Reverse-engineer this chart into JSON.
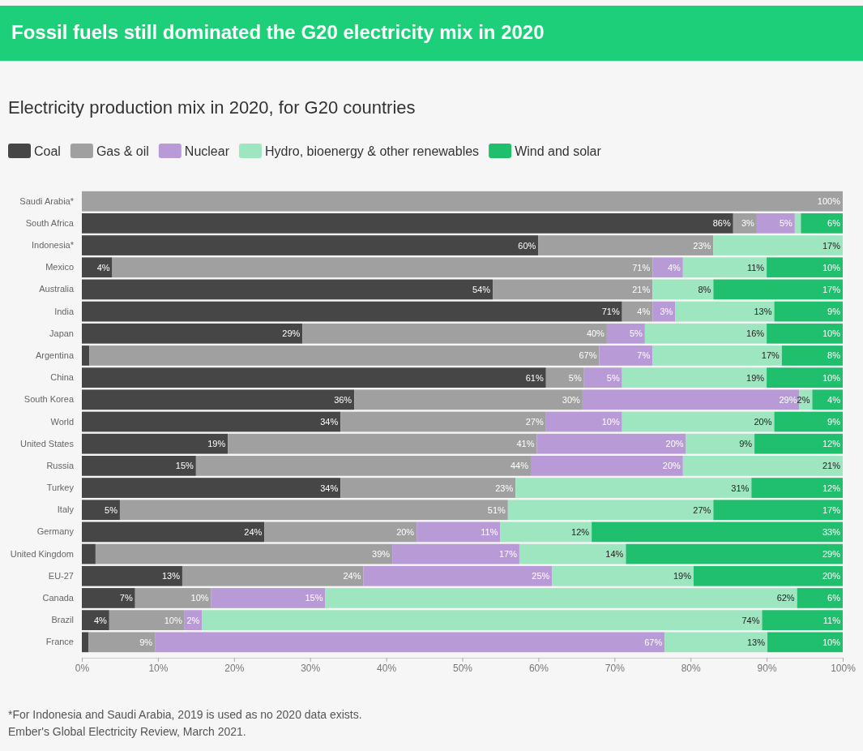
{
  "chart_data": {
    "type": "bar",
    "orientation": "horizontal",
    "stacked": true,
    "title": "Fossil fuels still dominated the G20 electricity mix in 2020",
    "subtitle": "Electricity production mix in 2020, for G20 countries",
    "categories": [
      "Saudi Arabia*",
      "South Africa",
      "Indonesia*",
      "Mexico",
      "Australia",
      "India",
      "Japan",
      "Argentina",
      "China",
      "South Korea",
      "World",
      "United States",
      "Russia",
      "Turkey",
      "Italy",
      "Germany",
      "United Kingdom",
      "EU-27",
      "Canada",
      "Brazil",
      "France"
    ],
    "series": [
      {
        "name": "Coal",
        "color": "#464646",
        "values": [
          0,
          85.6,
          60,
          4,
          54,
          71,
          29,
          1,
          61,
          35.8,
          34,
          19.2,
          15,
          34,
          5,
          24,
          1.8,
          13.2,
          7,
          3.6,
          0.9
        ],
        "value_labels": [
          null,
          "86%",
          "60%",
          "4%",
          "54%",
          "71%",
          "29%",
          null,
          "61%",
          "36%",
          "34%",
          "19%",
          "15%",
          "34%",
          "5%",
          "24%",
          null,
          "13%",
          "7%",
          "4%",
          null
        ]
      },
      {
        "name": "Gas & oil",
        "color": "#a0a0a0",
        "values": [
          100,
          3.1,
          23,
          71,
          21,
          4,
          40,
          67,
          5,
          30,
          27,
          40.6,
          44,
          23,
          51,
          20,
          39,
          23.8,
          10,
          9.9,
          8.7
        ],
        "value_labels": [
          "100%",
          "3%",
          "23%",
          "71%",
          "21%",
          "4%",
          "40%",
          "67%",
          "5%",
          "30%",
          "27%",
          "41%",
          "44%",
          "23%",
          "51%",
          "20%",
          "39%",
          "24%",
          "10%",
          "10%",
          "9%"
        ]
      },
      {
        "name": "Nuclear",
        "color": "#b89ad6",
        "values": [
          0,
          5,
          0,
          4,
          0,
          3,
          5,
          7,
          5,
          28.5,
          10,
          19.6,
          20,
          0,
          0,
          11,
          16.7,
          24.8,
          15,
          2.3,
          67
        ],
        "value_labels": [
          null,
          "5%",
          null,
          "4%",
          null,
          "3%",
          "5%",
          "7%",
          "5%",
          "29%",
          "10%",
          "20%",
          "20%",
          null,
          null,
          "11%",
          "17%",
          "25%",
          "15%",
          "2%",
          "67%"
        ]
      },
      {
        "name": "Hydro, bioenergy & other renewables",
        "color": "#9de6c0",
        "values": [
          0,
          0.8,
          17,
          11,
          8,
          13,
          16,
          17,
          19,
          1.7,
          20,
          9,
          21,
          31,
          27,
          12,
          14,
          18.6,
          62,
          73.6,
          13.5
        ],
        "value_labels": [
          null,
          null,
          "17%",
          "11%",
          "8%",
          "13%",
          "16%",
          "17%",
          "19%",
          "2%",
          "20%",
          "9%",
          "21%",
          "31%",
          "27%",
          "12%",
          "14%",
          "19%",
          "62%",
          "74%",
          "13%"
        ]
      },
      {
        "name": "Wind and solar",
        "color": "#1fbf6e",
        "values": [
          0,
          5.5,
          0,
          10,
          17,
          9,
          10,
          8,
          10,
          4,
          9,
          11.6,
          0,
          12,
          17,
          33,
          28.5,
          19.6,
          6,
          10.6,
          9.9
        ],
        "value_labels": [
          null,
          "6%",
          null,
          "10%",
          "17%",
          "9%",
          "10%",
          "8%",
          "10%",
          "4%",
          "9%",
          "12%",
          null,
          "12%",
          "17%",
          "33%",
          "29%",
          "20%",
          "6%",
          "11%",
          "10%"
        ]
      }
    ],
    "xlim": [
      0,
      100
    ],
    "xticks": [
      {
        "value": 0,
        "label": "0%"
      },
      {
        "value": 10,
        "label": "10%"
      },
      {
        "value": 20,
        "label": "20%"
      },
      {
        "value": 30,
        "label": "30%"
      },
      {
        "value": 40,
        "label": "40%"
      },
      {
        "value": 50,
        "label": "50%"
      },
      {
        "value": 60,
        "label": "60%"
      },
      {
        "value": 70,
        "label": "70%"
      },
      {
        "value": 80,
        "label": "80%"
      },
      {
        "value": 90,
        "label": "90%"
      },
      {
        "value": 100,
        "label": "100%"
      }
    ],
    "legend": "top left",
    "annotations": [
      "*For Indonesia and Saudi Arabia, 2019 is used as no 2020 data exists.",
      "Ember's Global Electricity Review, March 2021."
    ]
  }
}
